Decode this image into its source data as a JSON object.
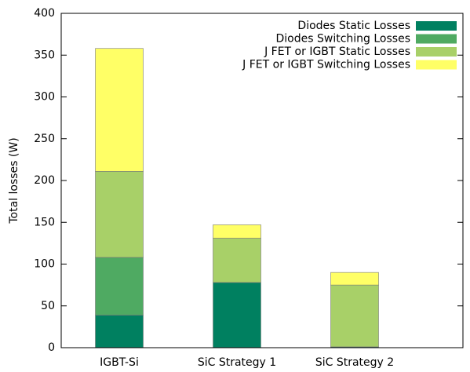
{
  "chart_data": {
    "type": "stacked_bar",
    "y_label": "Total losses (W)",
    "categories": [
      "IGBT-Si",
      "SiC Strategy 1",
      "SiC Strategy 2"
    ],
    "series": [
      {
        "name": "Diodes Static Losses",
        "color": "#008060",
        "values": [
          39,
          78,
          1
        ]
      },
      {
        "name": "Diodes Switching Losses",
        "color": "#4faa62",
        "values": [
          69,
          0,
          0
        ]
      },
      {
        "name": "J FET or IGBT Static Losses",
        "color": "#a8d068",
        "values": [
          103,
          53,
          74
        ]
      },
      {
        "name": "J FET or IGBT Switching Losses",
        "color": "#ffff66",
        "values": [
          147,
          16,
          15
        ]
      }
    ],
    "ylim": [
      0,
      400
    ],
    "yticks": [
      0,
      50,
      100,
      150,
      200,
      250,
      300,
      350,
      400
    ],
    "grid": false,
    "legend": "top-right"
  }
}
